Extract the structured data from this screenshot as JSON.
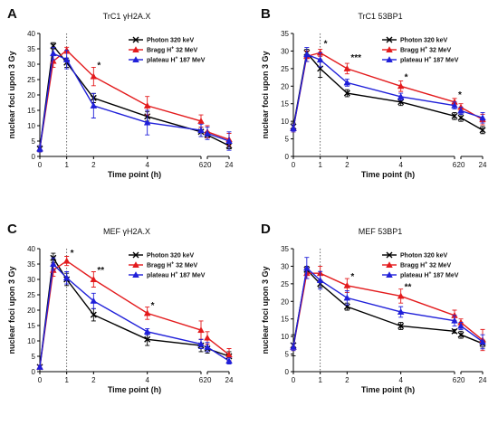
{
  "chart_data": [
    {
      "panel": "A",
      "type": "line",
      "title": "TrC1 γH2A.X",
      "xlabel": "Time point (h)",
      "ylabel": "nuclear foci upon 3 Gy",
      "ylim": [
        0,
        40
      ],
      "yticks": [
        "0",
        "5",
        "10",
        "15",
        "20",
        "25",
        "30",
        "35",
        "40"
      ],
      "xticks": [
        "0",
        "1",
        "2",
        "4",
        "6",
        "20",
        "24"
      ],
      "x": [
        0,
        0.5,
        1,
        2,
        4,
        6,
        20,
        24
      ],
      "reference_line_x": 1,
      "series": [
        {
          "name": "Photon 320 keV",
          "color": "#000000",
          "marker": "x",
          "values": [
            2.5,
            36,
            30.5,
            19,
            13,
            8,
            7,
            3.5
          ],
          "errors": [
            1,
            1,
            1.5,
            1.5,
            1.5,
            1.5,
            1,
            1
          ]
        },
        {
          "name": "Bragg H+ 32 MeV",
          "color": "#e31a1c",
          "marker": "triangle",
          "values": [
            2.5,
            31,
            34.5,
            26,
            16.5,
            11.5,
            8,
            5.5
          ],
          "errors": [
            1,
            2,
            1,
            3,
            3,
            2,
            2,
            2
          ]
        },
        {
          "name": "plateau H+ 187 MeV",
          "color": "#1f1fd9",
          "marker": "triangle",
          "values": [
            2.5,
            33.5,
            31.5,
            16.5,
            11,
            8.5,
            7.5,
            5
          ],
          "errors": [
            1,
            2,
            3,
            4,
            4,
            2,
            2,
            3
          ]
        }
      ],
      "annotations": [
        {
          "x": 2,
          "y": 29.5,
          "text": "*"
        }
      ]
    },
    {
      "panel": "B",
      "type": "line",
      "title": "TrC1 53BP1",
      "xlabel": "Time point (h)",
      "ylabel": "nuclear foci upon 3 Gy",
      "ylim": [
        0,
        35
      ],
      "yticks": [
        "0",
        "5",
        "10",
        "15",
        "20",
        "25",
        "30",
        "35"
      ],
      "xticks": [
        "0",
        "1",
        "2",
        "4",
        "6",
        "20",
        "24"
      ],
      "x": [
        0,
        0.5,
        1,
        2,
        4,
        6,
        20,
        24
      ],
      "reference_line_x": 1,
      "series": [
        {
          "name": "Photon 320 keV",
          "color": "#000000",
          "marker": "x",
          "values": [
            8.5,
            29.5,
            25,
            18,
            15.5,
            11.5,
            11,
            7.5
          ],
          "errors": [
            1,
            1,
            2.5,
            1,
            1,
            1,
            1,
            1
          ]
        },
        {
          "name": "Bragg H+ 32 MeV",
          "color": "#e31a1c",
          "marker": "triangle",
          "values": [
            8,
            28.5,
            29.5,
            25,
            20,
            15.5,
            14,
            10.5
          ],
          "errors": [
            1,
            1.5,
            1,
            1.5,
            1.5,
            1,
            1,
            1.5
          ]
        },
        {
          "name": "plateau H+ 187 MeV",
          "color": "#1f1fd9",
          "marker": "triangle",
          "values": [
            8,
            29,
            27.5,
            21,
            17,
            14.5,
            13,
            11
          ],
          "errors": [
            1,
            2,
            2,
            1,
            1,
            1,
            1,
            1.5
          ]
        }
      ],
      "annotations": [
        {
          "x": 1,
          "y": 32,
          "text": "*"
        },
        {
          "x": 2,
          "y": 28,
          "text": "***"
        },
        {
          "x": 4,
          "y": 22.5,
          "text": "*"
        },
        {
          "x": 6,
          "y": 17.5,
          "text": "*"
        }
      ]
    },
    {
      "panel": "C",
      "type": "line",
      "title": "MEF γH2A.X",
      "xlabel": "Time point (h)",
      "ylabel": "nuclear foci upon 3 Gy",
      "ylim": [
        0,
        40
      ],
      "yticks": [
        "0",
        "5",
        "10",
        "15",
        "20",
        "25",
        "30",
        "35",
        "40"
      ],
      "xticks": [
        "0",
        "1",
        "2",
        "4",
        "6",
        "20",
        "24"
      ],
      "x": [
        0,
        0.5,
        1,
        2,
        4,
        6,
        20,
        24
      ],
      "reference_line_x": 1,
      "series": [
        {
          "name": "Photon 320 keV",
          "color": "#000000",
          "marker": "x",
          "values": [
            1.5,
            37,
            30,
            18.5,
            10.5,
            8.5,
            7.5,
            5
          ],
          "errors": [
            0.5,
            1.5,
            2,
            2,
            2,
            2,
            1.5,
            1.5
          ]
        },
        {
          "name": "Bragg H+ 32 MeV",
          "color": "#e31a1c",
          "marker": "triangle",
          "values": [
            1.5,
            33,
            36,
            30,
            19,
            13.5,
            11,
            5.5
          ],
          "errors": [
            0.5,
            2,
            1.5,
            2.5,
            2,
            3,
            2,
            2
          ]
        },
        {
          "name": "plateau H+ 187 MeV",
          "color": "#1f1fd9",
          "marker": "triangle",
          "values": [
            1.5,
            35,
            30.5,
            23,
            13,
            9,
            8,
            3.5
          ],
          "errors": [
            0.5,
            2,
            2,
            2.5,
            1,
            1.5,
            1.5,
            1
          ]
        }
      ],
      "annotations": [
        {
          "x": 1,
          "y": 38.5,
          "text": "*"
        },
        {
          "x": 2,
          "y": 33,
          "text": "**"
        },
        {
          "x": 4,
          "y": 21.5,
          "text": "*"
        }
      ]
    },
    {
      "panel": "D",
      "type": "line",
      "title": "MEF 53BP1",
      "xlabel": "Time point (h)",
      "ylabel": "nuclear foci upon 3 Gy",
      "ylim": [
        0,
        35
      ],
      "yticks": [
        "0",
        "5",
        "10",
        "15",
        "20",
        "25",
        "30",
        "35"
      ],
      "xticks": [
        "0",
        "1",
        "2",
        "4",
        "6",
        "20",
        "24"
      ],
      "x": [
        0,
        0.5,
        1,
        2,
        4,
        6,
        20,
        24
      ],
      "reference_line_x": 1,
      "series": [
        {
          "name": "Photon 320 keV",
          "color": "#000000",
          "marker": "x",
          "values": [
            7.5,
            29,
            25,
            18.5,
            13,
            11.5,
            10.5,
            8
          ],
          "errors": [
            3,
            1,
            1,
            1,
            1,
            0.5,
            1,
            1
          ]
        },
        {
          "name": "Bragg H+ 32 MeV",
          "color": "#e31a1c",
          "marker": "triangle",
          "values": [
            7,
            28,
            28,
            24.5,
            21.5,
            16,
            14,
            9
          ],
          "errors": [
            1,
            1.5,
            2,
            2,
            2,
            1.5,
            1,
            3
          ]
        },
        {
          "name": "plateau H+ 187 MeV",
          "color": "#1f1fd9",
          "marker": "triangle",
          "values": [
            7,
            29.5,
            26,
            21,
            17,
            14.5,
            13,
            8.5
          ],
          "errors": [
            1,
            3,
            2.5,
            2,
            1.5,
            1.5,
            1,
            2
          ]
        }
      ],
      "annotations": [
        {
          "x": 2,
          "y": 27,
          "text": "*"
        },
        {
          "x": 4,
          "y": 24,
          "text": "**"
        }
      ]
    }
  ]
}
